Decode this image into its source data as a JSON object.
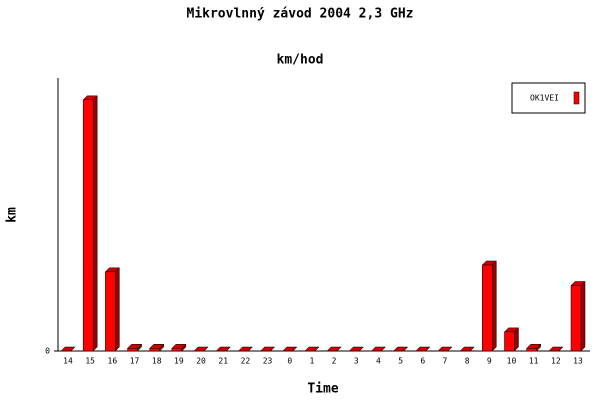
{
  "chart_data": {
    "type": "bar",
    "title": "Mikrovlnný závod 2004 2,3 GHz",
    "subtitle": "km/hod",
    "x_label": "Time",
    "y_label": "km",
    "categories": [
      "14",
      "15",
      "16",
      "17",
      "18",
      "19",
      "20",
      "21",
      "22",
      "23",
      "0",
      "1",
      "2",
      "3",
      "4",
      "5",
      "6",
      "7",
      "8",
      "9",
      "10",
      "11",
      "12",
      "13"
    ],
    "series": [
      {
        "name": "OK1VEI",
        "color": "#ff0000",
        "values": [
          0,
          92,
          29,
          1,
          1,
          1,
          0,
          0,
          0,
          0,
          0,
          0,
          0,
          0,
          0,
          0,
          0,
          0,
          0,
          31.5,
          7,
          1,
          0,
          24
        ]
      }
    ],
    "ylim": [
      0,
      100
    ],
    "yticks": [
      0
    ],
    "legend": "top-right"
  }
}
